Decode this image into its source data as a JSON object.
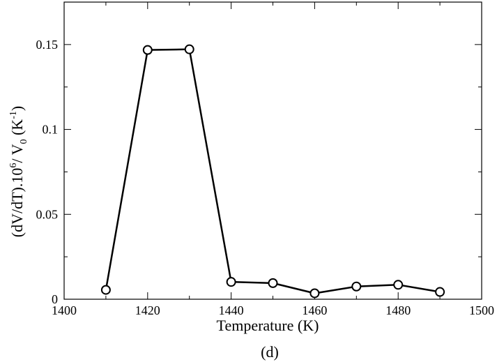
{
  "chart_data": {
    "type": "line",
    "title": "",
    "xlabel": "Temperature (K)",
    "ylabel_parts": {
      "a": "(dV/dT).10",
      "a_sup": "6",
      "b": "/ V",
      "b_sub": "0",
      "c": " (K",
      "c_sup": "-1",
      "d": ")"
    },
    "caption": "(d)",
    "xlim": [
      1400,
      1500
    ],
    "ylim": [
      0,
      0.175
    ],
    "x_major_ticks": [
      1400,
      1420,
      1440,
      1460,
      1480,
      1500
    ],
    "x_tick_labels": [
      "1400",
      "1420",
      "1440",
      "1460",
      "1480",
      "1500"
    ],
    "x_minor_ticks": [
      1410,
      1430,
      1450,
      1470,
      1490
    ],
    "y_major_ticks": [
      0,
      0.05,
      0.1,
      0.15
    ],
    "y_tick_labels": [
      "0",
      "0.05",
      "0.1",
      "0.15"
    ],
    "y_minor_ticks": [
      0.025,
      0.075,
      0.125
    ],
    "grid": false,
    "series": [
      {
        "x": [
          1410,
          1420,
          1430,
          1440,
          1450,
          1460,
          1470,
          1480,
          1490
        ],
        "y": [
          0.0055,
          0.1468,
          0.1472,
          0.0102,
          0.0095,
          0.0035,
          0.0075,
          0.0085,
          0.0043
        ],
        "color": "#000000",
        "marker": "open-circle"
      }
    ]
  }
}
